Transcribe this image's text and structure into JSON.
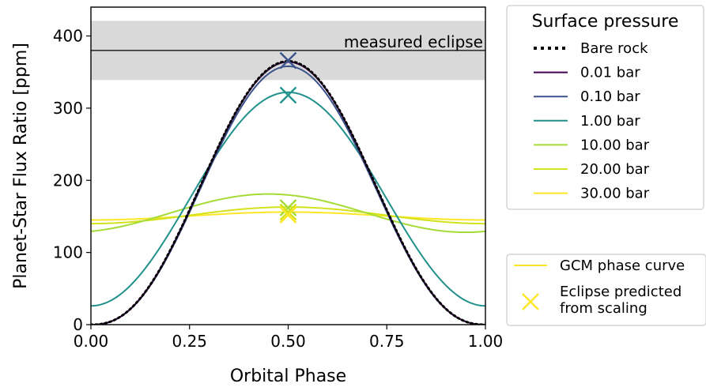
{
  "chart_data": {
    "type": "line",
    "xlabel": "Orbital Phase",
    "ylabel": "Planet-Star Flux Ratio [ppm]",
    "xlim": [
      0.0,
      1.0
    ],
    "ylim": [
      0,
      440
    ],
    "xticks": [
      {
        "value": 0.0,
        "label": "0.00"
      },
      {
        "value": 0.25,
        "label": "0.25"
      },
      {
        "value": 0.5,
        "label": "0.50"
      },
      {
        "value": 0.75,
        "label": "0.75"
      },
      {
        "value": 1.0,
        "label": "1.00"
      }
    ],
    "yticks": [
      {
        "value": 0,
        "label": "0"
      },
      {
        "value": 100,
        "label": "100"
      },
      {
        "value": 200,
        "label": "200"
      },
      {
        "value": 300,
        "label": "300"
      },
      {
        "value": 400,
        "label": "400"
      }
    ],
    "grid": false,
    "measured_eclipse": {
      "label": "measured eclipse",
      "value": 380,
      "band_low": 339,
      "band_high": 421,
      "line_color": "#333333",
      "band_color": "#d9d9d9"
    },
    "series": [
      {
        "name": "Bare rock",
        "color": "#000000",
        "style": "dotted",
        "amplitude": 365,
        "peak_phase": 0.5
      },
      {
        "name": "0.01 bar",
        "color": "#440154",
        "style": "solid",
        "amplitude": 364,
        "peak_phase": 0.5
      },
      {
        "name": "0.10 bar",
        "color": "#3b528b",
        "style": "solid",
        "amplitude": 358,
        "peak_phase": 0.5
      },
      {
        "name": "1.00 bar",
        "color": "#21918c",
        "style": "solid",
        "night": 26,
        "day": 322,
        "peak_phase": 0.5
      },
      {
        "name": "10.00 bar",
        "color": "#a5db36",
        "style": "solid",
        "night": 128,
        "day": 181,
        "peak_phase": 0.45
      },
      {
        "name": "20.00 bar",
        "color": "#d2e21b",
        "style": "solid",
        "night": 140,
        "day": 163,
        "peak_phase": 0.5
      },
      {
        "name": "30.00 bar",
        "color": "#fde725",
        "style": "solid",
        "night": 145,
        "day": 156,
        "peak_phase": 0.5
      }
    ],
    "eclipse_predictions": [
      {
        "series": "0.10 bar",
        "x": 0.5,
        "y": 366,
        "color": "#3b528b"
      },
      {
        "series": "1.00 bar",
        "x": 0.5,
        "y": 318,
        "color": "#21918c"
      },
      {
        "series": "10.00 bar",
        "x": 0.5,
        "y": 162,
        "color": "#a5db36"
      },
      {
        "series": "20.00 bar",
        "x": 0.5,
        "y": 156,
        "color": "#d2e21b"
      },
      {
        "series": "30.00 bar",
        "x": 0.5,
        "y": 152,
        "color": "#fde725"
      }
    ],
    "legend_pressure": {
      "title": "Surface pressure",
      "placement": "outside-right-top"
    },
    "legend_markers": {
      "placement": "outside-right-bottom",
      "color": "#fde725",
      "items": [
        {
          "kind": "line",
          "label_lines": [
            "GCM phase curve"
          ]
        },
        {
          "kind": "marker",
          "label_lines": [
            "Eclipse predicted",
            "from scaling"
          ]
        }
      ]
    }
  }
}
